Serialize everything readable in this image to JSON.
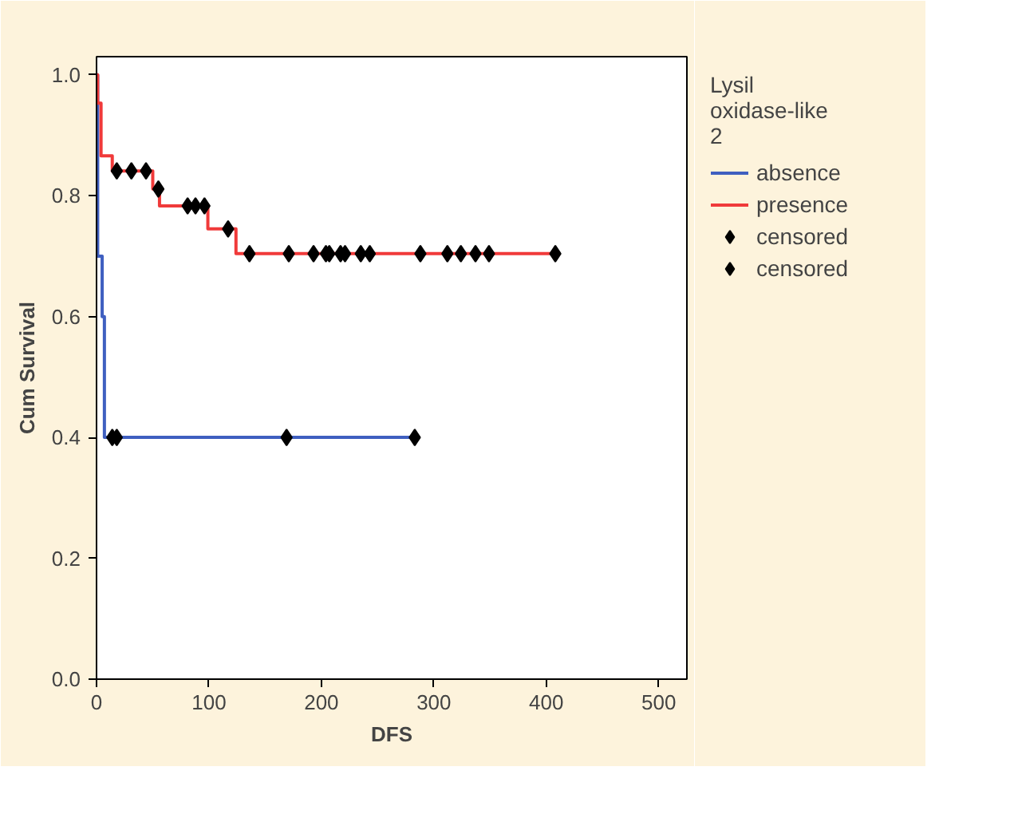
{
  "chart_data": {
    "type": "step",
    "xlabel": "DFS",
    "ylabel": "Cum Survival",
    "legend_title": "Lysil oxidase-like 2",
    "xlim": [
      0,
      525
    ],
    "ylim": [
      0,
      1.03
    ],
    "xticks": [
      0,
      100,
      200,
      300,
      400,
      500
    ],
    "yticks": [
      {
        "value": 0,
        "label": "0.0"
      },
      {
        "value": 0.2,
        "label": "0.2"
      },
      {
        "value": 0.4,
        "label": "0.4"
      },
      {
        "value": 0.6,
        "label": "0.6"
      },
      {
        "value": 0.8,
        "label": "0.8"
      },
      {
        "value": 1.0,
        "label": "1.0"
      }
    ],
    "grid": false,
    "legend": "right",
    "series": [
      {
        "name": "absence",
        "color": "#3f5fc0",
        "x": [
          0,
          1,
          5,
          7,
          283
        ],
        "values": [
          1.0,
          0.7,
          0.6,
          0.4,
          0.4
        ]
      },
      {
        "name": "presence",
        "color": "#f03a3a",
        "x": [
          0,
          1,
          4,
          14,
          50,
          56,
          99,
          124,
          408
        ],
        "values": [
          1.0,
          0.953,
          0.866,
          0.841,
          0.811,
          0.783,
          0.745,
          0.704,
          0.704
        ]
      },
      {
        "name": "censored",
        "type": "scatter",
        "marker": "diamond",
        "color": "#000000",
        "x": [
          14,
          18,
          169,
          283
        ],
        "values": [
          0.4,
          0.4,
          0.4,
          0.4
        ]
      },
      {
        "name": "censored",
        "type": "scatter",
        "marker": "diamond",
        "color": "#000000",
        "x": [
          18,
          31,
          44,
          55,
          81,
          88,
          96,
          117,
          136,
          171,
          193,
          204,
          207,
          217,
          221,
          235,
          243,
          288,
          312,
          324,
          337,
          349,
          408
        ],
        "values": [
          0.841,
          0.841,
          0.841,
          0.811,
          0.783,
          0.783,
          0.783,
          0.745,
          0.704,
          0.704,
          0.704,
          0.704,
          0.704,
          0.704,
          0.704,
          0.704,
          0.704,
          0.704,
          0.704,
          0.704,
          0.704,
          0.704,
          0.704
        ]
      }
    ]
  }
}
